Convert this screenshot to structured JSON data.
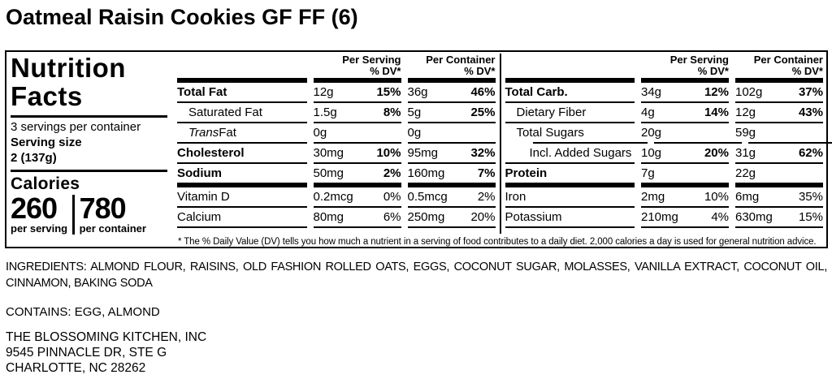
{
  "title": "Oatmeal Raisin Cookies GF FF (6)",
  "label": {
    "heading_line1": "Nutrition",
    "heading_line2": "Facts",
    "servings_per_container": "3 servings per container",
    "serving_size_label": "Serving size",
    "serving_size_value": "2 (137g)",
    "calories_label": "Calories",
    "calories_per_serving": "260",
    "calories_per_serving_label": "per serving",
    "calories_per_container": "780",
    "calories_per_container_label": "per container",
    "headers": {
      "per_serving": "Per Serving",
      "per_container": "Per Container",
      "dv": "% DV*"
    },
    "footnote": "* The % Daily Value (DV) tells you how much a nutrient in a serving of food contributes to a daily diet. 2,000 calories a day is used for general nutrition advice.",
    "accent_color": "#000000",
    "background_color": "#ffffff"
  },
  "table_left": {
    "main_rows": [
      {
        "name": "Total Fat",
        "bold": true,
        "ps": "12g",
        "psdv": "15%",
        "pc": "36g",
        "pcdv": "46%",
        "dv_bold": true
      },
      {
        "name": "Saturated Fat",
        "indent": 1,
        "ps": "1.5g",
        "psdv": "8%",
        "pc": "5g",
        "pcdv": "25%",
        "dv_bold": true
      },
      {
        "name": "Trans Fat",
        "italic_prefix": "Trans",
        "name_rest": " Fat",
        "indent": 1,
        "ps": "0g",
        "psdv": "",
        "pc": "0g",
        "pcdv": ""
      },
      {
        "name": "Cholesterol",
        "bold": true,
        "ps": "30mg",
        "psdv": "10%",
        "pc": "95mg",
        "pcdv": "32%",
        "dv_bold": true
      },
      {
        "name": "Sodium",
        "bold": true,
        "ps": "50mg",
        "psdv": "2%",
        "pc": "160mg",
        "pcdv": "7%",
        "dv_bold": true
      }
    ],
    "vitamin_rows": [
      {
        "name": "Vitamin D",
        "ps": "0.2mcg",
        "psdv": "0%",
        "pc": "0.5mcg",
        "pcdv": "2%"
      },
      {
        "name": "Calcium",
        "ps": "80mg",
        "psdv": "6%",
        "pc": "250mg",
        "pcdv": "20%"
      }
    ]
  },
  "table_right": {
    "main_rows": [
      {
        "name": "Total Carb.",
        "bold": true,
        "ps": "34g",
        "psdv": "12%",
        "pc": "102g",
        "pcdv": "37%",
        "dv_bold": true
      },
      {
        "name": "Dietary Fiber",
        "indent": 1,
        "ps": "4g",
        "psdv": "14%",
        "pc": "12g",
        "pcdv": "43%",
        "dv_bold": true
      },
      {
        "name": "Total Sugars",
        "indent": 1,
        "ps": "20g",
        "psdv": "",
        "pc": "59g",
        "pcdv": ""
      },
      {
        "name": "Incl. Added Sugars",
        "indent": 2,
        "sep_indent": true,
        "ps": "10g",
        "psdv": "20%",
        "pc": "31g",
        "pcdv": "62%",
        "dv_bold": true
      },
      {
        "name": "Protein",
        "bold": true,
        "ps": "7g",
        "psdv": "",
        "pc": "22g",
        "pcdv": ""
      }
    ],
    "vitamin_rows": [
      {
        "name": "Iron",
        "ps": "2mg",
        "psdv": "10%",
        "pc": "6mg",
        "pcdv": "35%"
      },
      {
        "name": "Potassium",
        "ps": "210mg",
        "psdv": "4%",
        "pc": "630mg",
        "pcdv": "15%"
      }
    ]
  },
  "ingredients": "INGREDIENTS: ALMOND FLOUR, RAISINS, OLD FASHION ROLLED OATS, EGGS, COCONUT SUGAR, MOLASSES, VANILLA EXTRACT, COCONUT OIL, CINNAMON, BAKING SODA",
  "contains": "CONTAINS: EGG, ALMOND",
  "manufacturer": [
    "THE BLOSSOMING KITCHEN, INC",
    "9545 PINNACLE DR, STE G",
    "CHARLOTTE, NC 28262"
  ]
}
